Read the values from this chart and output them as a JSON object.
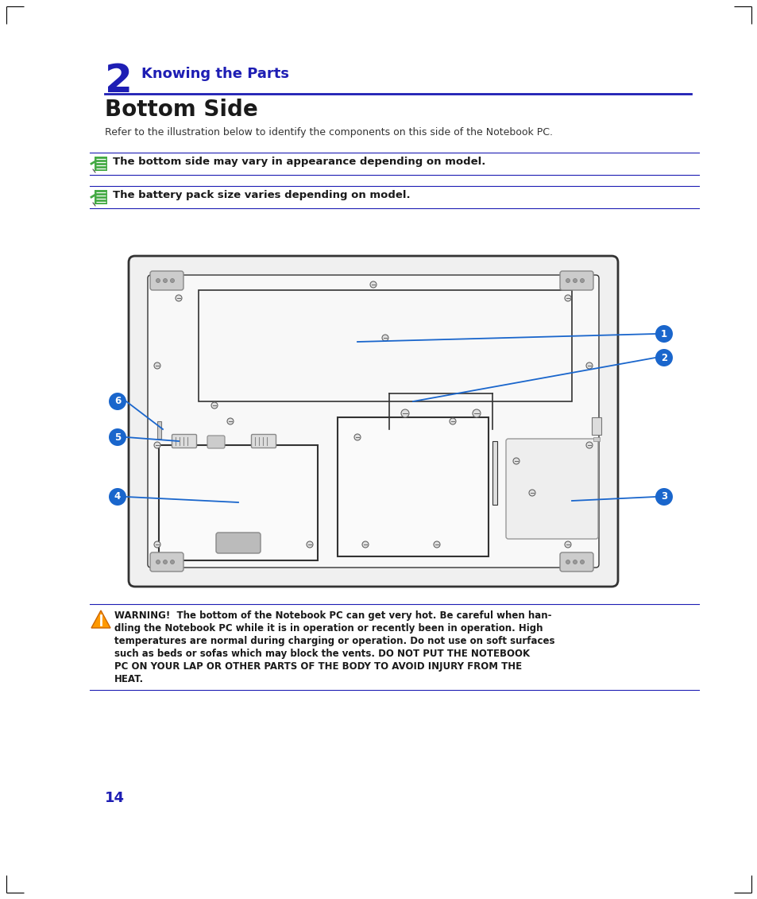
{
  "page_bg": "#ffffff",
  "page_number": "14",
  "chapter_number": "2",
  "chapter_title": "Knowing the Parts",
  "chapter_color": "#1e1eb4",
  "section_title": "Bottom Side",
  "section_color": "#1a1a1a",
  "intro_text": "Refer to the illustration below to identify the components on this side of the Notebook PC.",
  "note1": "The bottom side may vary in appearance depending on model.",
  "note2": "The battery pack size varies depending on model.",
  "warning_text_normal": "WARNING!  The bottom of the Notebook PC can get very hot. Be careful when han-\ndling the Notebook PC while it is in operation or recently been in operation. High\ntemperatures are normal during charging or operation. Do not use on soft surfaces\nsuch as beds or sofas which may block the vents. ",
  "warning_text_bold": "DO NOT PUT THE NOTEBOOK\nPC ON YOUR LAP OR OTHER PARTS OF THE BODY TO AVOID INJURY FROM THE\nHEAT.",
  "line_color": "#1e1eb4",
  "callout_color": "#1a66cc",
  "laptop_bg": "#ffffff",
  "laptop_border": "#333333",
  "laptop_inner_bg": "#ffffff",
  "screw_color": "#666666",
  "part_border": "#333333",
  "part_fill": "#ffffff",
  "rubber_fill": "#aaaaaa",
  "note_icon_bg": "#44aa44"
}
